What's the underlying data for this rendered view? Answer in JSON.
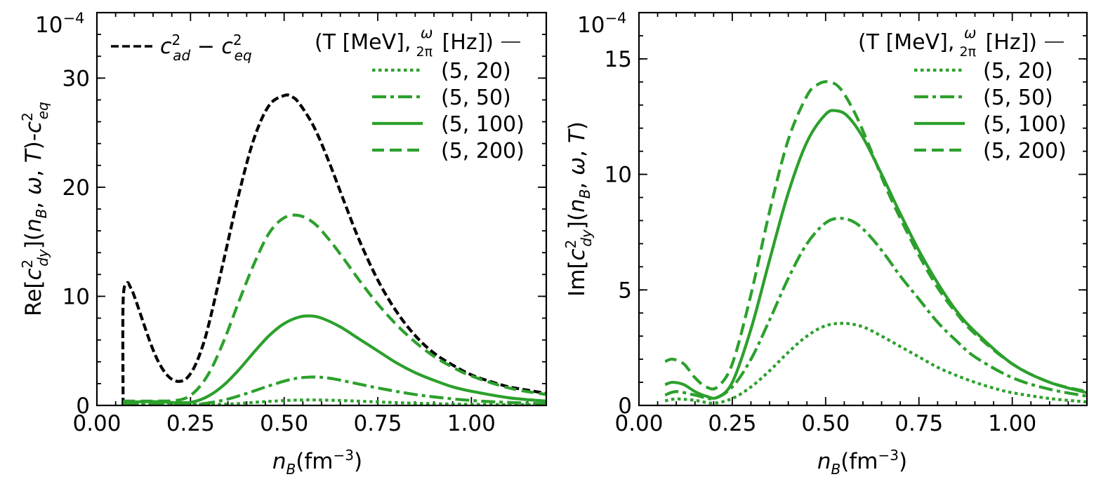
{
  "colors": {
    "green": "#2ca02c",
    "black": "#000000"
  },
  "chart_data": [
    {
      "type": "line",
      "ylabel": "Re[c²dy](nB, ω, T)-c²eq",
      "xlabel": "nB(fm⁻³)",
      "x_tick_labels": [
        "0.00",
        "0.25",
        "0.50",
        "0.75",
        "1.00"
      ],
      "x_ticks": [
        0.0,
        0.25,
        0.5,
        0.75,
        1.0
      ],
      "y_tick_labels": [
        "0",
        "10",
        "20",
        "30"
      ],
      "y_ticks": [
        0,
        10,
        20,
        30
      ],
      "scale_label": "10",
      "scale_exponent": "−4",
      "xlim": [
        0.0,
        1.2
      ],
      "ylim": [
        0,
        36
      ],
      "legend_placement": "top-right",
      "legend_title": {
        "prefix": "(T [MeV], ",
        "frac_num": "ω",
        "frac_den": "2π",
        "suffix": " [Hz])"
      },
      "ref_label": {
        "c": "c",
        "sup": "2",
        "ad": "ad",
        "minus": " − ",
        "eq": "eq"
      },
      "ref_legend_placement": "top-left",
      "series": [
        {
          "name": "c²ad − c²eq",
          "style": "dashed-black",
          "x": [
            0.07,
            0.07,
            0.08,
            0.09,
            0.1,
            0.12,
            0.14,
            0.16,
            0.18,
            0.2,
            0.22,
            0.24,
            0.26,
            0.28,
            0.3,
            0.34,
            0.38,
            0.42,
            0.46,
            0.5,
            0.52,
            0.54,
            0.58,
            0.62,
            0.66,
            0.7,
            0.75,
            0.8,
            0.85,
            0.9,
            0.95,
            1.0,
            1.05,
            1.1,
            1.15,
            1.2
          ],
          "y": [
            0.0,
            9.5,
            11.2,
            10.8,
            10.0,
            8.0,
            6.0,
            4.3,
            3.1,
            2.4,
            2.2,
            2.5,
            3.5,
            5.2,
            7.6,
            13.5,
            19.5,
            24.5,
            27.5,
            28.4,
            28.3,
            27.7,
            25.5,
            22.3,
            18.7,
            15.2,
            11.5,
            8.6,
            6.4,
            4.8,
            3.7,
            2.8,
            2.2,
            1.7,
            1.4,
            1.1
          ]
        },
        {
          "name": "(5, 20)",
          "style": "dotted",
          "x": [
            0.07,
            0.15,
            0.25,
            0.35,
            0.45,
            0.55,
            0.65,
            0.75,
            0.85,
            1.0,
            1.2
          ],
          "y": [
            0.15,
            0.15,
            0.1,
            0.12,
            0.35,
            0.5,
            0.45,
            0.32,
            0.2,
            0.1,
            0.05
          ]
        },
        {
          "name": "(5, 50)",
          "style": "dashdot",
          "x": [
            0.07,
            0.15,
            0.22,
            0.28,
            0.34,
            0.4,
            0.46,
            0.52,
            0.57,
            0.62,
            0.68,
            0.75,
            0.85,
            0.95,
            1.05,
            1.2
          ],
          "y": [
            0.1,
            0.1,
            0.05,
            0.15,
            0.5,
            1.1,
            1.8,
            2.4,
            2.6,
            2.5,
            2.1,
            1.6,
            1.0,
            0.6,
            0.35,
            0.15
          ]
        },
        {
          "name": "(5, 100)",
          "style": "solid",
          "x": [
            0.07,
            0.15,
            0.22,
            0.26,
            0.3,
            0.34,
            0.38,
            0.42,
            0.46,
            0.5,
            0.54,
            0.57,
            0.6,
            0.65,
            0.7,
            0.75,
            0.8,
            0.85,
            0.9,
            0.95,
            1.0,
            1.1,
            1.2
          ],
          "y": [
            0.3,
            0.35,
            0.25,
            0.35,
            0.9,
            1.9,
            3.3,
            4.9,
            6.4,
            7.5,
            8.1,
            8.2,
            8.0,
            7.2,
            6.1,
            5.0,
            3.9,
            3.0,
            2.3,
            1.7,
            1.3,
            0.7,
            0.4
          ]
        },
        {
          "name": "(5, 200)",
          "style": "dashed",
          "x": [
            0.07,
            0.15,
            0.22,
            0.26,
            0.3,
            0.34,
            0.38,
            0.42,
            0.46,
            0.5,
            0.54,
            0.58,
            0.62,
            0.66,
            0.7,
            0.75,
            0.8,
            0.85,
            0.9,
            0.95,
            1.0,
            1.1,
            1.2
          ],
          "y": [
            0.4,
            0.4,
            0.5,
            1.2,
            3.0,
            6.0,
            9.6,
            13.0,
            15.8,
            17.2,
            17.4,
            16.7,
            15.2,
            13.4,
            11.5,
            9.3,
            7.4,
            5.8,
            4.5,
            3.5,
            2.7,
            1.6,
            1.0
          ]
        }
      ]
    },
    {
      "type": "line",
      "ylabel": "Im[c²dy](nB, ω, T)",
      "xlabel": "nB(fm⁻³)",
      "x_tick_labels": [
        "0.00",
        "0.25",
        "0.50",
        "0.75",
        "1.00"
      ],
      "x_ticks": [
        0.0,
        0.25,
        0.5,
        0.75,
        1.0
      ],
      "y_tick_labels": [
        "0",
        "5",
        "10",
        "15"
      ],
      "y_ticks": [
        0,
        5,
        10,
        15
      ],
      "scale_label": "10",
      "scale_exponent": "−4",
      "xlim": [
        0.0,
        1.2
      ],
      "ylim": [
        0,
        17
      ],
      "legend_placement": "top-right",
      "legend_title": {
        "prefix": "(T [MeV], ",
        "frac_num": "ω",
        "frac_den": "2π",
        "suffix": " [Hz])"
      },
      "series": [
        {
          "name": "(5, 20)",
          "style": "dotted",
          "x": [
            0.07,
            0.1,
            0.15,
            0.2,
            0.25,
            0.3,
            0.35,
            0.4,
            0.45,
            0.5,
            0.55,
            0.6,
            0.65,
            0.7,
            0.75,
            0.8,
            0.85,
            0.9,
            0.95,
            1.0,
            1.1,
            1.2
          ],
          "y": [
            0.2,
            0.28,
            0.22,
            0.1,
            0.3,
            0.8,
            1.5,
            2.3,
            3.0,
            3.45,
            3.55,
            3.4,
            3.0,
            2.55,
            2.1,
            1.65,
            1.3,
            1.0,
            0.75,
            0.55,
            0.3,
            0.15
          ]
        },
        {
          "name": "(5, 50)",
          "style": "dashdot",
          "x": [
            0.07,
            0.1,
            0.15,
            0.2,
            0.25,
            0.3,
            0.35,
            0.4,
            0.45,
            0.5,
            0.54,
            0.58,
            0.62,
            0.66,
            0.7,
            0.75,
            0.8,
            0.85,
            0.9,
            1.0,
            1.1,
            1.2
          ],
          "y": [
            0.45,
            0.6,
            0.45,
            0.3,
            0.8,
            2.0,
            3.7,
            5.5,
            7.0,
            7.9,
            8.1,
            7.9,
            7.3,
            6.5,
            5.6,
            4.6,
            3.6,
            2.8,
            2.1,
            1.2,
            0.7,
            0.4
          ]
        },
        {
          "name": "(5, 100)",
          "style": "solid",
          "x": [
            0.07,
            0.09,
            0.12,
            0.15,
            0.18,
            0.21,
            0.25,
            0.3,
            0.35,
            0.4,
            0.45,
            0.5,
            0.53,
            0.56,
            0.6,
            0.65,
            0.7,
            0.75,
            0.8,
            0.85,
            0.9,
            1.0,
            1.1,
            1.2
          ],
          "y": [
            0.9,
            1.0,
            0.9,
            0.6,
            0.4,
            0.35,
            1.0,
            3.3,
            6.3,
            9.2,
            11.4,
            12.6,
            12.75,
            12.5,
            11.6,
            10.0,
            8.3,
            6.7,
            5.3,
            4.1,
            3.2,
            1.8,
            1.0,
            0.55
          ]
        },
        {
          "name": "(5, 200)",
          "style": "dashed",
          "x": [
            0.07,
            0.09,
            0.12,
            0.15,
            0.18,
            0.21,
            0.25,
            0.3,
            0.35,
            0.4,
            0.45,
            0.48,
            0.51,
            0.54,
            0.58,
            0.62,
            0.66,
            0.7,
            0.75,
            0.8,
            0.85,
            0.9,
            1.0,
            1.1,
            1.2
          ],
          "y": [
            1.9,
            2.0,
            1.8,
            1.2,
            0.8,
            0.8,
            1.8,
            4.8,
            8.4,
            11.5,
            13.4,
            13.9,
            14.0,
            13.7,
            12.6,
            11.1,
            9.5,
            8.1,
            6.5,
            5.1,
            4.0,
            3.1,
            1.8,
            1.0,
            0.6
          ]
        }
      ]
    }
  ]
}
